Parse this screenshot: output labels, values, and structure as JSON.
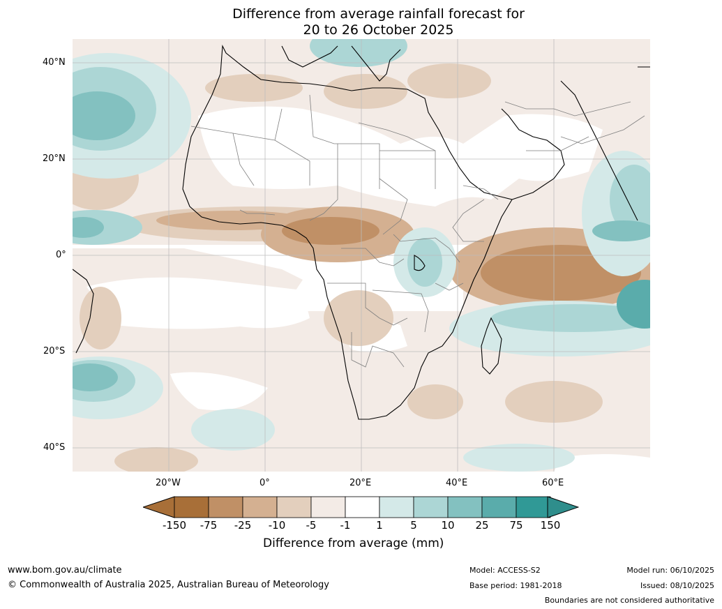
{
  "title": {
    "line1": "Difference from average rainfall forecast for",
    "line2": "20 to 26 October 2025"
  },
  "axes": {
    "lat_labels": [
      "40°N",
      "20°N",
      "0°",
      "20°S",
      "40°S"
    ],
    "lon_labels": [
      "20°W",
      "0°",
      "20°E",
      "40°E",
      "60°E"
    ]
  },
  "colorbar": {
    "ticks": [
      "-150",
      "-75",
      "-25",
      "-10",
      "-5",
      "-1",
      "1",
      "5",
      "10",
      "25",
      "75",
      "150"
    ],
    "colors": [
      "#a86f38",
      "#c09066",
      "#d4b091",
      "#e3cfbd",
      "#f3ebe6",
      "#ffffff",
      "#d4e9e8",
      "#acd6d5",
      "#83c1c0",
      "#5aacab",
      "#309996"
    ],
    "under_color": "#a86f38",
    "over_color": "#2f8e8c",
    "label": "Difference from average (mm)"
  },
  "footer": {
    "url": "www.bom.gov.au/climate",
    "copyright": "© Commonwealth of Australia 2025, Australian Bureau of Meteorology",
    "model": "Model: ACCESS-S2",
    "base_period": "Base period: 1981-2018",
    "model_run": "Model run: 06/10/2025",
    "issued": "Issued: 08/10/2025",
    "disclaimer": "Boundaries are not considered authoritative"
  }
}
